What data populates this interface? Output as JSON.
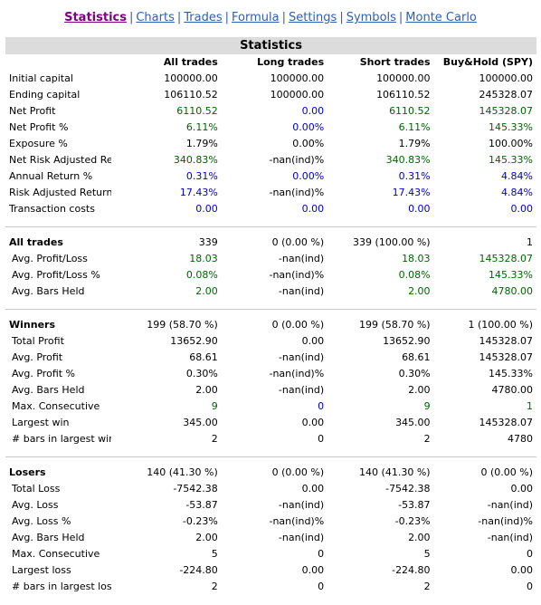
{
  "nav": {
    "items": [
      "Statistics",
      "Charts",
      "Trades",
      "Formula",
      "Settings",
      "Symbols",
      "Monte Carlo"
    ],
    "active": 0,
    "separator": "|"
  },
  "table": {
    "title": "Statistics",
    "headers": [
      "",
      "All trades",
      "Long trades",
      "Short trades",
      "Buy&Hold (SPY)"
    ],
    "sections": [
      {
        "bold_first": false,
        "indent": false,
        "rows": [
          {
            "label": "Initial capital",
            "values": [
              "100000.00",
              "100000.00",
              "100000.00",
              "100000.00"
            ],
            "colors": [
              "",
              "",
              "",
              ""
            ]
          },
          {
            "label": "Ending capital",
            "values": [
              "106110.52",
              "100000.00",
              "106110.52",
              "245328.07"
            ],
            "colors": [
              "",
              "",
              "",
              ""
            ]
          },
          {
            "label": "Net Profit",
            "values": [
              "6110.52",
              "0.00",
              "6110.52",
              "145328.07"
            ],
            "colors": [
              "g",
              "b",
              "g",
              "g"
            ]
          },
          {
            "label": "Net Profit %",
            "values": [
              "6.11%",
              "0.00%",
              "6.11%",
              "145.33%"
            ],
            "colors": [
              "g",
              "b",
              "g",
              "g"
            ]
          },
          {
            "label": "Exposure %",
            "values": [
              "1.79%",
              "0.00%",
              "1.79%",
              "100.00%"
            ],
            "colors": [
              "",
              "",
              "",
              ""
            ]
          },
          {
            "label": "Net Risk Adjusted Return %",
            "values": [
              "340.83%",
              "-nan(ind)%",
              "340.83%",
              "145.33%"
            ],
            "colors": [
              "g",
              "",
              "g",
              "g"
            ]
          },
          {
            "label": "Annual Return %",
            "values": [
              "0.31%",
              "0.00%",
              "0.31%",
              "4.84%"
            ],
            "colors": [
              "b",
              "b",
              "b",
              "b"
            ]
          },
          {
            "label": "Risk Adjusted Return %",
            "values": [
              "17.43%",
              "-nan(ind)%",
              "17.43%",
              "4.84%"
            ],
            "colors": [
              "b",
              "",
              "b",
              "b"
            ]
          },
          {
            "label": "Transaction costs",
            "values": [
              "0.00",
              "0.00",
              "0.00",
              "0.00"
            ],
            "colors": [
              "b",
              "b",
              "b",
              "b"
            ]
          }
        ]
      },
      {
        "bold_first": true,
        "indent": true,
        "rows": [
          {
            "label": "All trades",
            "values": [
              "339",
              "0 (0.00 %)",
              "339 (100.00 %)",
              "1"
            ],
            "colors": [
              "",
              "",
              "",
              ""
            ]
          },
          {
            "label": "Avg. Profit/Loss",
            "values": [
              "18.03",
              "-nan(ind)",
              "18.03",
              "145328.07"
            ],
            "colors": [
              "g",
              "",
              "g",
              "g"
            ]
          },
          {
            "label": "Avg. Profit/Loss %",
            "values": [
              "0.08%",
              "-nan(ind)%",
              "0.08%",
              "145.33%"
            ],
            "colors": [
              "g",
              "",
              "g",
              "g"
            ]
          },
          {
            "label": "Avg. Bars Held",
            "values": [
              "2.00",
              "-nan(ind)",
              "2.00",
              "4780.00"
            ],
            "colors": [
              "g",
              "",
              "g",
              "g"
            ]
          }
        ]
      },
      {
        "bold_first": true,
        "indent": true,
        "rows": [
          {
            "label": "Winners",
            "values": [
              "199 (58.70 %)",
              "0 (0.00 %)",
              "199 (58.70 %)",
              "1 (100.00 %)"
            ],
            "colors": [
              "",
              "",
              "",
              ""
            ]
          },
          {
            "label": "Total Profit",
            "values": [
              "13652.90",
              "0.00",
              "13652.90",
              "145328.07"
            ],
            "colors": [
              "",
              "",
              "",
              ""
            ]
          },
          {
            "label": "Avg. Profit",
            "values": [
              "68.61",
              "-nan(ind)",
              "68.61",
              "145328.07"
            ],
            "colors": [
              "",
              "",
              "",
              ""
            ]
          },
          {
            "label": "Avg. Profit %",
            "values": [
              "0.30%",
              "-nan(ind)%",
              "0.30%",
              "145.33%"
            ],
            "colors": [
              "",
              "",
              "",
              ""
            ]
          },
          {
            "label": "Avg. Bars Held",
            "values": [
              "2.00",
              "-nan(ind)",
              "2.00",
              "4780.00"
            ],
            "colors": [
              "",
              "",
              "",
              ""
            ]
          },
          {
            "label": "Max. Consecutive",
            "values": [
              "9",
              "0",
              "9",
              "1"
            ],
            "colors": [
              "g",
              "b",
              "g",
              "g"
            ]
          },
          {
            "label": "Largest win",
            "values": [
              "345.00",
              "0.00",
              "345.00",
              "145328.07"
            ],
            "colors": [
              "",
              "",
              "",
              ""
            ]
          },
          {
            "label": "# bars in largest win",
            "values": [
              "2",
              "0",
              "2",
              "4780"
            ],
            "colors": [
              "",
              "",
              "",
              ""
            ]
          }
        ]
      },
      {
        "bold_first": true,
        "indent": true,
        "rows": [
          {
            "label": "Losers",
            "values": [
              "140 (41.30 %)",
              "0 (0.00 %)",
              "140 (41.30 %)",
              "0 (0.00 %)"
            ],
            "colors": [
              "",
              "",
              "",
              ""
            ]
          },
          {
            "label": "Total Loss",
            "values": [
              "-7542.38",
              "0.00",
              "-7542.38",
              "0.00"
            ],
            "colors": [
              "",
              "",
              "",
              ""
            ]
          },
          {
            "label": "Avg. Loss",
            "values": [
              "-53.87",
              "-nan(ind)",
              "-53.87",
              "-nan(ind)"
            ],
            "colors": [
              "",
              "",
              "",
              ""
            ]
          },
          {
            "label": "Avg. Loss %",
            "values": [
              "-0.23%",
              "-nan(ind)%",
              "-0.23%",
              "-nan(ind)%"
            ],
            "colors": [
              "",
              "",
              "",
              ""
            ]
          },
          {
            "label": "Avg. Bars Held",
            "values": [
              "2.00",
              "-nan(ind)",
              "2.00",
              "-nan(ind)"
            ],
            "colors": [
              "",
              "",
              "",
              ""
            ]
          },
          {
            "label": "Max. Consecutive",
            "values": [
              "5",
              "0",
              "5",
              "0"
            ],
            "colors": [
              "",
              "",
              "",
              ""
            ]
          },
          {
            "label": "Largest loss",
            "values": [
              "-224.80",
              "0.00",
              "-224.80",
              "0.00"
            ],
            "colors": [
              "",
              "",
              "",
              ""
            ]
          },
          {
            "label": "# bars in largest loss",
            "values": [
              "2",
              "0",
              "2",
              "0"
            ],
            "colors": [
              "",
              "",
              "",
              ""
            ]
          }
        ]
      }
    ]
  }
}
